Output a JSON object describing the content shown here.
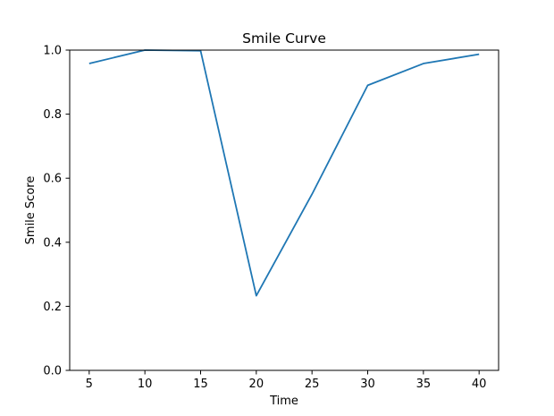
{
  "chart_data": {
    "type": "line",
    "title": "Smile Curve",
    "xlabel": "Time",
    "ylabel": "Smile Score",
    "x": [
      5,
      10,
      15,
      20,
      25,
      30,
      35,
      40
    ],
    "series": [
      {
        "values": [
          0.958,
          1.0,
          0.998,
          0.233,
          0.55,
          0.89,
          0.958,
          0.987
        ]
      }
    ],
    "xlim": [
      3.25,
      41.75
    ],
    "ylim": [
      0.0,
      1.0
    ],
    "xticks": [
      5,
      10,
      15,
      20,
      25,
      30,
      35,
      40
    ],
    "yticks": [
      0.0,
      0.2,
      0.4,
      0.6,
      0.8,
      1.0
    ],
    "ytick_labels": [
      "0.0",
      "0.2",
      "0.4",
      "0.6",
      "0.8",
      "1.0"
    ],
    "grid": false,
    "legend": "none",
    "line_color": "#1f77b4"
  }
}
